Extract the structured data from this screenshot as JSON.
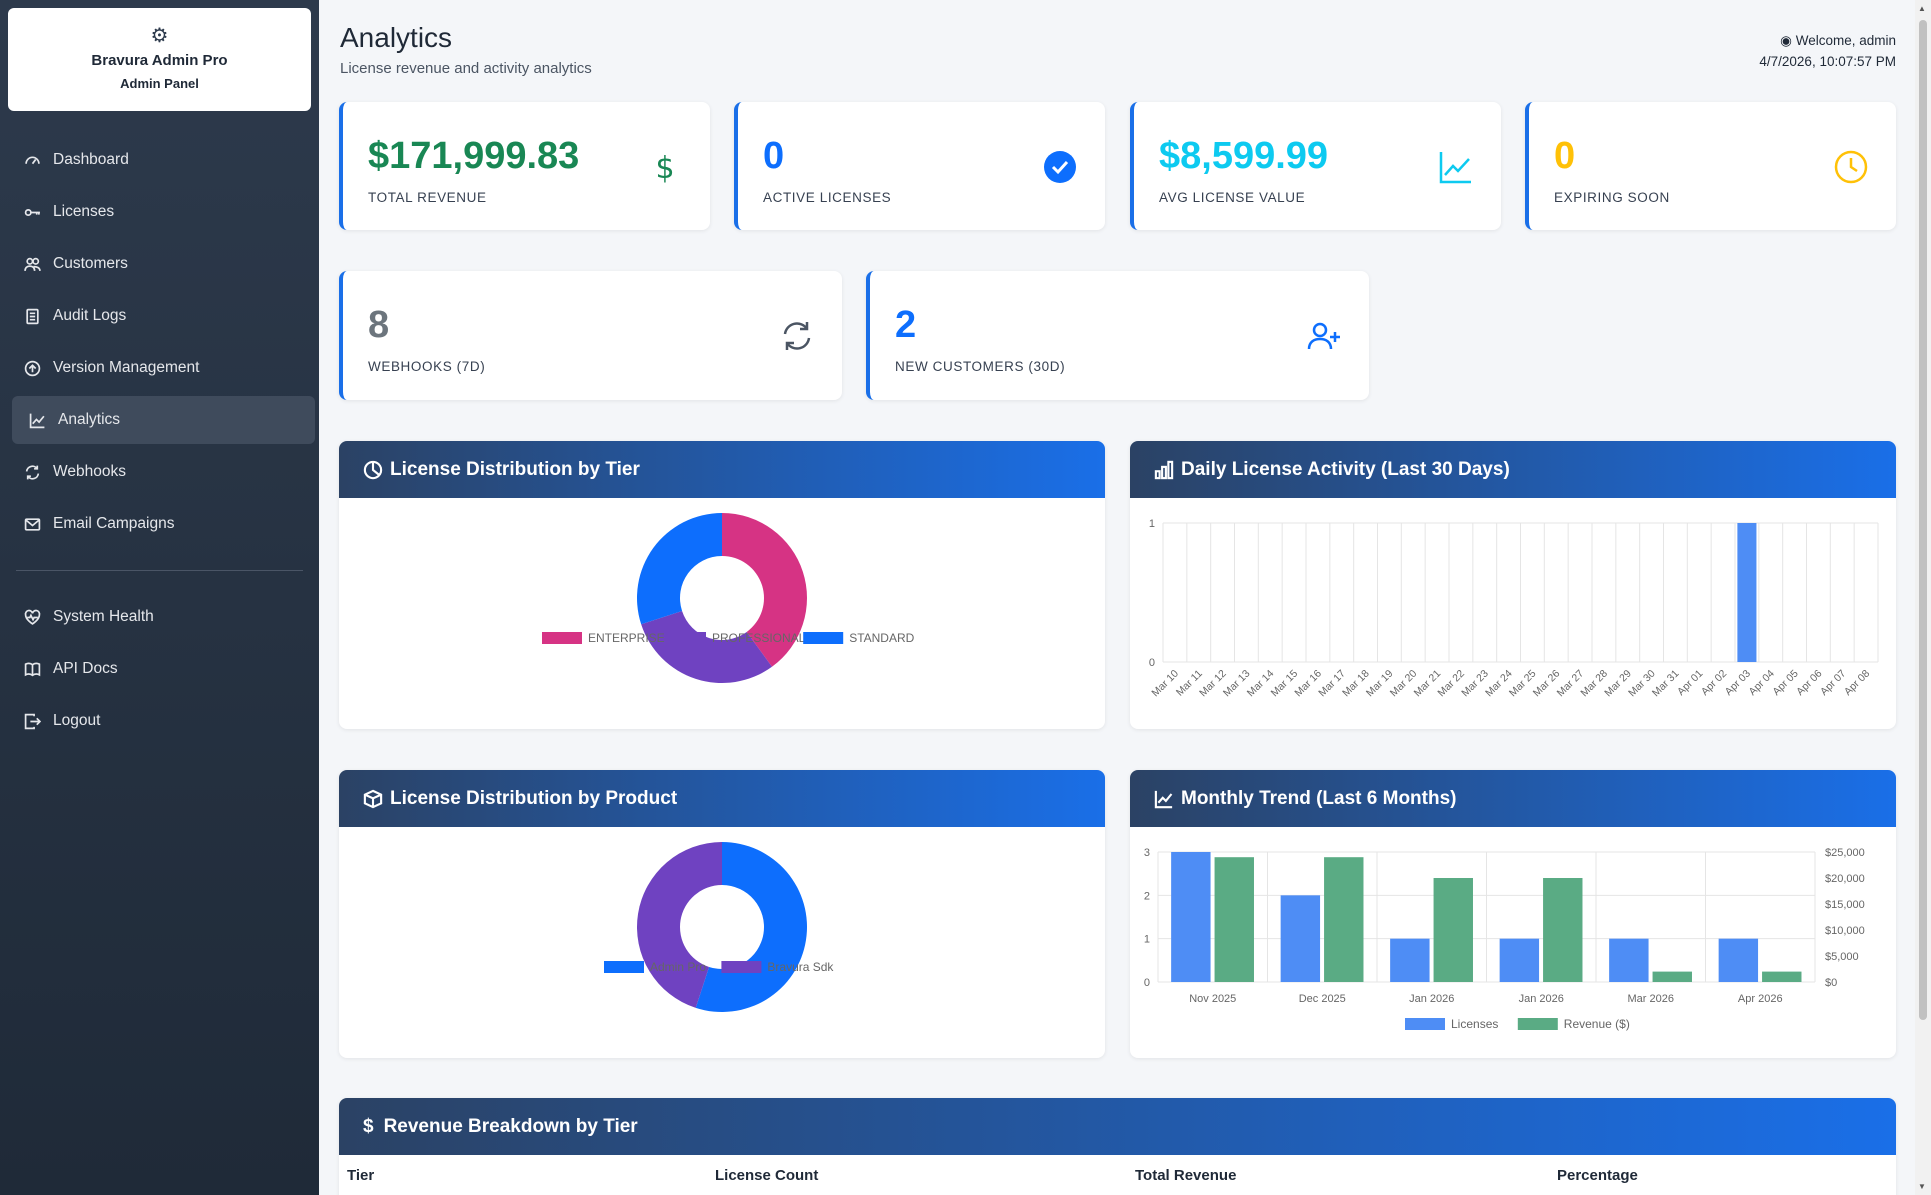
{
  "sidebar": {
    "brand_name": "Bravura Admin Pro",
    "brand_sub": "Admin Panel",
    "items": [
      {
        "label": "Dashboard",
        "icon": "gauge-icon"
      },
      {
        "label": "Licenses",
        "icon": "key-icon"
      },
      {
        "label": "Customers",
        "icon": "people-icon"
      },
      {
        "label": "Audit Logs",
        "icon": "journal-icon"
      },
      {
        "label": "Version Management",
        "icon": "upload-circle-icon"
      },
      {
        "label": "Analytics",
        "icon": "graph-up-icon",
        "active": true
      },
      {
        "label": "Webhooks",
        "icon": "sync-icon"
      },
      {
        "label": "Email Campaigns",
        "icon": "envelope-icon"
      }
    ],
    "bottom_items": [
      {
        "label": "System Health",
        "icon": "heart-pulse-icon"
      },
      {
        "label": "API Docs",
        "icon": "book-icon"
      },
      {
        "label": "Logout",
        "icon": "logout-icon"
      }
    ]
  },
  "header": {
    "title": "Analytics",
    "subtitle": "License revenue and activity analytics",
    "welcome": "Welcome, admin",
    "datetime": "4/7/2026, 10:07:57 PM"
  },
  "stats": [
    {
      "value": "$171,999.83",
      "label": "TOTAL REVENUE",
      "color": "#198754",
      "icon": "dollar-icon"
    },
    {
      "value": "0",
      "label": "ACTIVE LICENSES",
      "color": "#0d6efd",
      "icon": "check-circle-icon"
    },
    {
      "value": "$8,599.99",
      "label": "AVG LICENSE VALUE",
      "color": "#0dcaf0",
      "icon": "graph-icon"
    },
    {
      "value": "0",
      "label": "EXPIRING SOON",
      "color": "#ffc107",
      "icon": "clock-icon"
    },
    {
      "value": "8",
      "label": "WEBHOOKS (7D)",
      "color": "#6c757d",
      "icon": "sync-icon"
    },
    {
      "value": "2",
      "label": "NEW CUSTOMERS (30D)",
      "color": "#0d6efd",
      "icon": "person-add-icon"
    }
  ],
  "panels": {
    "tier": "License Distribution by Tier",
    "daily": "Daily License Activity (Last 30 Days)",
    "product": "License Distribution by Product",
    "monthly": "Monthly Trend (Last 6 Months)",
    "revenue": "Revenue Breakdown by Tier"
  },
  "revenue_table": {
    "headers": [
      "Tier",
      "License Count",
      "Total Revenue",
      "Percentage"
    ]
  },
  "chart_data": [
    {
      "type": "pie",
      "title": "",
      "labels": [
        "ENTERPRISE",
        "PROFESSIONAL",
        "STANDARD"
      ],
      "values": [
        40,
        30,
        30
      ],
      "colors": [
        "#d63384",
        "#6f42c1",
        "#0d6efd"
      ],
      "donut": true,
      "legend": "bottom"
    },
    {
      "type": "bar",
      "title": "",
      "categories": [
        "Mar 10",
        "Mar 11",
        "Mar 12",
        "Mar 13",
        "Mar 14",
        "Mar 15",
        "Mar 16",
        "Mar 17",
        "Mar 18",
        "Mar 19",
        "Mar 20",
        "Mar 21",
        "Mar 22",
        "Mar 23",
        "Mar 24",
        "Mar 25",
        "Mar 26",
        "Mar 27",
        "Mar 28",
        "Mar 29",
        "Mar 30",
        "Mar 31",
        "Apr 01",
        "Apr 02",
        "Apr 03",
        "Apr 04",
        "Apr 05",
        "Apr 06",
        "Apr 07",
        "Apr 08"
      ],
      "values": [
        0,
        0,
        0,
        0,
        0,
        0,
        0,
        0,
        0,
        0,
        0,
        0,
        0,
        0,
        0,
        0,
        0,
        0,
        0,
        0,
        0,
        0,
        0,
        0,
        1,
        0,
        0,
        0,
        0,
        0
      ],
      "ylim": [
        0,
        1
      ],
      "yticks": [
        0,
        1
      ],
      "color": "#4e8df5",
      "grid": true
    },
    {
      "type": "pie",
      "title": "",
      "labels": [
        "Admin Pro",
        "Bravura Sdk"
      ],
      "values": [
        55,
        45
      ],
      "colors": [
        "#0d6efd",
        "#6f42c1"
      ],
      "donut": true,
      "legend": "bottom"
    },
    {
      "type": "bar",
      "title": "",
      "categories": [
        "Nov 2025",
        "Dec 2025",
        "Jan 2026",
        "Jan 2026",
        "Mar 2026",
        "Apr 2026"
      ],
      "series": [
        {
          "name": "Licenses",
          "values": [
            3,
            2,
            1,
            1,
            1,
            1
          ],
          "axis": "left",
          "color": "#4e8df5"
        },
        {
          "name": "Revenue ($)",
          "values": [
            24000,
            24000,
            20000,
            20000,
            2000,
            2000
          ],
          "axis": "right",
          "color": "#5aab84"
        }
      ],
      "ylim_left": [
        0,
        3
      ],
      "yticks_left": [
        0,
        1,
        2,
        3
      ],
      "ylim_right": [
        0,
        25000
      ],
      "yticks_right": [
        "$0",
        "$5,000",
        "$10,000",
        "$15,000",
        "$20,000",
        "$25,000"
      ],
      "legend": "bottom",
      "grid": true
    }
  ]
}
